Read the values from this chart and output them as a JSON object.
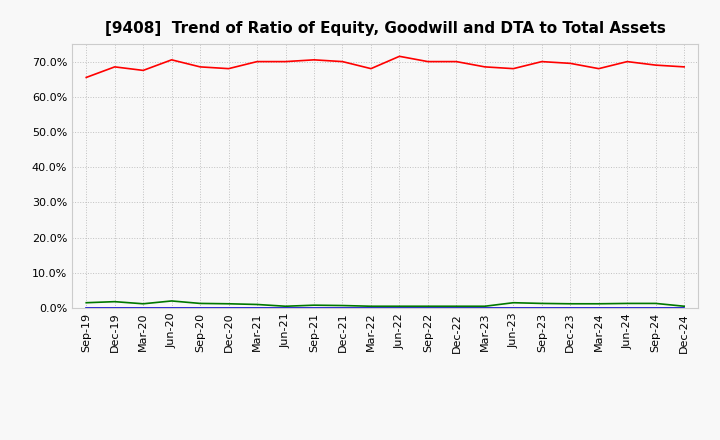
{
  "title": "[9408]  Trend of Ratio of Equity, Goodwill and DTA to Total Assets",
  "x_labels": [
    "Sep-19",
    "Dec-19",
    "Mar-20",
    "Jun-20",
    "Sep-20",
    "Dec-20",
    "Mar-21",
    "Jun-21",
    "Sep-21",
    "Dec-21",
    "Mar-22",
    "Jun-22",
    "Sep-22",
    "Dec-22",
    "Mar-23",
    "Jun-23",
    "Sep-23",
    "Dec-23",
    "Mar-24",
    "Jun-24",
    "Sep-24",
    "Dec-24"
  ],
  "equity": [
    65.5,
    68.5,
    67.5,
    70.5,
    68.5,
    68.0,
    70.0,
    70.0,
    70.5,
    70.0,
    68.0,
    71.5,
    70.0,
    70.0,
    68.5,
    68.0,
    70.0,
    69.5,
    68.0,
    70.0,
    69.0,
    68.5
  ],
  "goodwill": [
    0.0,
    0.0,
    0.0,
    0.0,
    0.0,
    0.0,
    0.0,
    0.0,
    0.0,
    0.0,
    0.0,
    0.0,
    0.0,
    0.0,
    0.0,
    0.0,
    0.0,
    0.0,
    0.0,
    0.0,
    0.0,
    0.0
  ],
  "dta": [
    1.5,
    1.8,
    1.2,
    2.0,
    1.3,
    1.2,
    1.0,
    0.5,
    0.8,
    0.7,
    0.5,
    0.5,
    0.5,
    0.5,
    0.5,
    1.5,
    1.3,
    1.2,
    1.2,
    1.3,
    1.3,
    0.5
  ],
  "equity_color": "#ff0000",
  "goodwill_color": "#0000cc",
  "dta_color": "#007700",
  "background_color": "#f8f8f8",
  "plot_bg_color": "#f8f8f8",
  "grid_color": "#bbbbbb",
  "ylim": [
    0,
    75
  ],
  "yticks": [
    0,
    10,
    20,
    30,
    40,
    50,
    60,
    70
  ],
  "title_fontsize": 11,
  "tick_fontsize": 8,
  "legend_fontsize": 9
}
